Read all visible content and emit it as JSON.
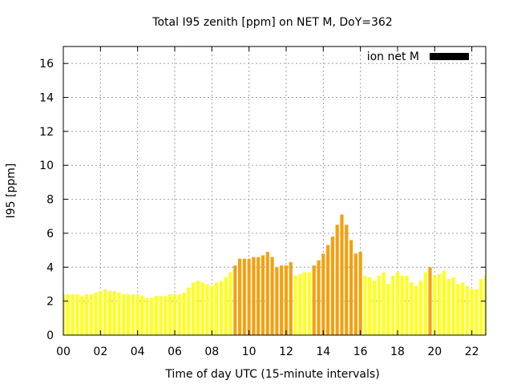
{
  "chart_data": {
    "type": "bar",
    "title": "Total I95 zenith [ppm] on NET M, DoY=362",
    "xlabel": "Time of day UTC (15-minute intervals)",
    "ylabel": "I95 [ppm]",
    "xlim": [
      0,
      22.75
    ],
    "ylim": [
      0,
      17
    ],
    "x_ticks": [
      "00",
      "02",
      "04",
      "06",
      "08",
      "10",
      "12",
      "14",
      "16",
      "18",
      "20",
      "22"
    ],
    "x_tick_values": [
      0,
      2,
      4,
      6,
      8,
      10,
      12,
      14,
      16,
      18,
      20,
      22
    ],
    "y_ticks": [
      0,
      2,
      4,
      6,
      8,
      10,
      12,
      14,
      16
    ],
    "grid": true,
    "legend": {
      "position": "top-right",
      "label": "ion net M",
      "color": "#000000"
    },
    "bar_width_hours": 0.18,
    "colors": {
      "low": "#ffff1a",
      "moderate": "#f5a00f"
    },
    "x": [
      0,
      0.25,
      0.5,
      0.75,
      1,
      1.25,
      1.5,
      1.75,
      2,
      2.25,
      2.5,
      2.75,
      3,
      3.25,
      3.5,
      3.75,
      4,
      4.25,
      4.5,
      4.75,
      5,
      5.25,
      5.5,
      5.75,
      6,
      6.25,
      6.5,
      6.75,
      7,
      7.25,
      7.5,
      7.75,
      8,
      8.25,
      8.5,
      8.75,
      9,
      9.25,
      9.5,
      9.75,
      10,
      10.25,
      10.5,
      10.75,
      11,
      11.25,
      11.5,
      11.75,
      12,
      12.25,
      12.5,
      12.75,
      13,
      13.25,
      13.5,
      13.75,
      14,
      14.25,
      14.5,
      14.75,
      15,
      15.25,
      15.5,
      15.75,
      16,
      16.25,
      16.5,
      16.75,
      17,
      17.25,
      17.5,
      17.75,
      18,
      18.25,
      18.5,
      18.75,
      19,
      19.25,
      19.5,
      19.75,
      20,
      20.25,
      20.5,
      20.75,
      21,
      21.25,
      21.5,
      21.75,
      22,
      22.25,
      22.5,
      22.75
    ],
    "values": [
      2.4,
      2.4,
      2.4,
      2.4,
      2.3,
      2.4,
      2.4,
      2.5,
      2.6,
      2.7,
      2.6,
      2.6,
      2.5,
      2.4,
      2.4,
      2.4,
      2.4,
      2.3,
      2.2,
      2.2,
      2.3,
      2.3,
      2.3,
      2.4,
      2.4,
      2.4,
      2.5,
      2.8,
      3.1,
      3.2,
      3.1,
      3.0,
      2.9,
      3.1,
      3.2,
      3.4,
      3.7,
      4.1,
      4.5,
      4.5,
      4.5,
      4.6,
      4.6,
      4.7,
      4.9,
      4.6,
      4.0,
      4.1,
      4.1,
      4.3,
      3.5,
      3.6,
      3.7,
      3.7,
      4.1,
      4.4,
      4.8,
      5.3,
      5.8,
      6.5,
      7.1,
      6.5,
      5.6,
      4.8,
      4.9,
      3.5,
      3.4,
      3.2,
      3.5,
      3.7,
      3.0,
      3.5,
      3.7,
      3.5,
      3.5,
      3.1,
      2.9,
      3.2,
      3.7,
      4.0,
      3.5,
      3.6,
      3.8,
      3.3,
      3.4,
      3.0,
      3.1,
      2.9,
      2.7,
      2.7,
      3.3,
      3.5
    ],
    "levels": [
      "low",
      "low",
      "low",
      "low",
      "low",
      "low",
      "low",
      "low",
      "low",
      "low",
      "low",
      "low",
      "low",
      "low",
      "low",
      "low",
      "low",
      "low",
      "low",
      "low",
      "low",
      "low",
      "low",
      "low",
      "low",
      "low",
      "low",
      "low",
      "low",
      "low",
      "low",
      "low",
      "low",
      "low",
      "low",
      "low",
      "low",
      "moderate",
      "moderate",
      "moderate",
      "moderate",
      "moderate",
      "moderate",
      "moderate",
      "moderate",
      "moderate",
      "moderate",
      "moderate",
      "moderate",
      "moderate",
      "low",
      "low",
      "low",
      "low",
      "moderate",
      "moderate",
      "moderate",
      "moderate",
      "moderate",
      "moderate",
      "moderate",
      "moderate",
      "moderate",
      "moderate",
      "moderate",
      "low",
      "low",
      "low",
      "low",
      "low",
      "low",
      "low",
      "low",
      "low",
      "low",
      "low",
      "low",
      "low",
      "low",
      "moderate",
      "low",
      "low",
      "low",
      "low",
      "low",
      "low",
      "low",
      "low",
      "low",
      "low",
      "low",
      "low"
    ]
  }
}
